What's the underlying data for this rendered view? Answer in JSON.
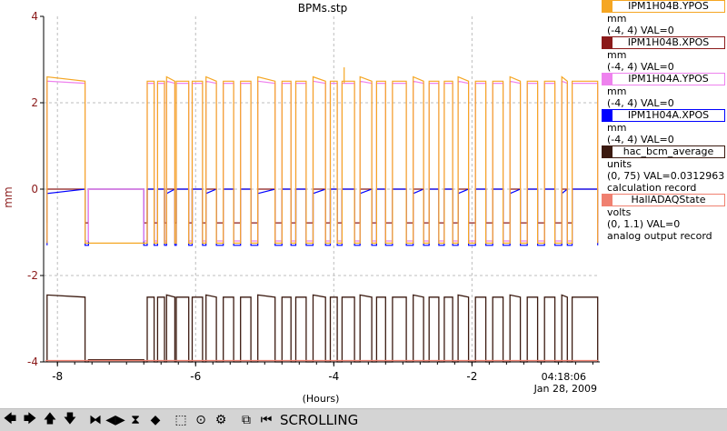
{
  "chart_data": {
    "type": "line",
    "title": "BPMs.stp",
    "xlabel": "(Hours)",
    "ylabel": "mm",
    "xlim": [
      -8.2,
      -0.15
    ],
    "ylim": [
      -4,
      4
    ],
    "x_ticks": [
      "-8",
      "-6",
      "-4",
      "-2"
    ],
    "y_ticks": [
      "4",
      "2",
      "0",
      "-2",
      "-4"
    ],
    "time_label": "04:18:06",
    "date_label": "Jan 28, 2009",
    "grid": true,
    "series": [
      {
        "name": "IPM1H04B.YPOS",
        "color": "#f5a623",
        "values_desc": "toggles between ~2.45 and ~-1.25"
      },
      {
        "name": "IPM1H04B.XPOS",
        "color": "#8b1a1a",
        "values_desc": "toggles between ~-0.8 and ~0.0"
      },
      {
        "name": "IPM1H04A.YPOS",
        "color": "#ee82ee",
        "values_desc": "toggles between ~2.45 and ~-1.25"
      },
      {
        "name": "IPM1H04A.XPOS",
        "color": "#0000ff",
        "values_desc": "toggles between ~-1.3 and ~0.0"
      },
      {
        "name": "hac_bcm_average",
        "color": "#3b1a10",
        "values_desc": "toggles between ~-2.5 and ~-4"
      },
      {
        "name": "HallADAQState",
        "color": "#f08070",
        "values_desc": "near -4"
      }
    ],
    "high_segments": [
      [
        -8.15,
        -7.6
      ],
      [
        -6.7,
        -6.6
      ],
      [
        -6.55,
        -6.45
      ],
      [
        -6.42,
        -6.3
      ],
      [
        -6.28,
        -6.1
      ],
      [
        -6.05,
        -5.9
      ],
      [
        -5.85,
        -5.7
      ],
      [
        -5.6,
        -5.45
      ],
      [
        -5.35,
        -5.2
      ],
      [
        -5.1,
        -4.85
      ],
      [
        -4.75,
        -4.62
      ],
      [
        -4.55,
        -4.4
      ],
      [
        -4.3,
        -4.12
      ],
      [
        -4.05,
        -3.95
      ],
      [
        -3.88,
        -3.7
      ],
      [
        -3.62,
        -3.45
      ],
      [
        -3.38,
        -3.25
      ],
      [
        -3.15,
        -2.95
      ],
      [
        -2.85,
        -2.7
      ],
      [
        -2.62,
        -2.48
      ],
      [
        -2.4,
        -2.28
      ],
      [
        -2.2,
        -2.05
      ],
      [
        -1.95,
        -1.8
      ],
      [
        -1.7,
        -1.55
      ],
      [
        -1.45,
        -1.3
      ],
      [
        -1.2,
        -1.05
      ],
      [
        -0.95,
        -0.8
      ],
      [
        -0.7,
        -0.62
      ],
      [
        -0.55,
        -0.18
      ]
    ],
    "flat_interval": [
      -7.55,
      -6.75
    ]
  },
  "legend": [
    {
      "name": "IPM1H04B.YPOS",
      "color": "#f5a623",
      "lines": [
        "mm",
        "(-4, 4) VAL=0"
      ]
    },
    {
      "name": "IPM1H04B.XPOS",
      "color": "#8b1a1a",
      "lines": [
        "mm",
        "(-4, 4) VAL=0"
      ]
    },
    {
      "name": "IPM1H04A.YPOS",
      "color": "#ee82ee",
      "lines": [
        "mm",
        "(-4, 4) VAL=0"
      ]
    },
    {
      "name": "IPM1H04A.XPOS",
      "color": "#0000ff",
      "lines": [
        "mm",
        "(-4, 4) VAL=0"
      ]
    },
    {
      "name": "hac_bcm_average",
      "color": "#3b1a10",
      "lines": [
        "units",
        "(0, 75) VAL=0.0312963",
        "calculation record"
      ]
    },
    {
      "name": "HallADAQState",
      "color": "#f08070",
      "lines": [
        "volts",
        "(0, 1.1) VAL=0",
        "analog output record"
      ]
    }
  ],
  "toolbar": {
    "status": "SCROLLING",
    "buttons": [
      {
        "name": "scroll-left-button",
        "icon": "arrow-left-icon",
        "glyph": "🡄"
      },
      {
        "name": "scroll-right-button",
        "icon": "arrow-right-icon",
        "glyph": "🡆"
      },
      {
        "name": "scroll-up-button",
        "icon": "arrow-up-icon",
        "glyph": "🡅"
      },
      {
        "name": "scroll-down-button",
        "icon": "arrow-down-icon",
        "glyph": "🡇"
      },
      {
        "name": "zoom-in-x-button",
        "icon": "zoom-in-x-icon",
        "glyph": "⧓"
      },
      {
        "name": "zoom-out-x-button",
        "icon": "zoom-out-x-icon",
        "glyph": "◀▶"
      },
      {
        "name": "zoom-in-y-button",
        "icon": "zoom-in-y-icon",
        "glyph": "⧗"
      },
      {
        "name": "zoom-out-y-button",
        "icon": "zoom-out-y-icon",
        "glyph": "◆"
      },
      {
        "name": "zoom-box-button",
        "icon": "zoom-box-icon",
        "glyph": "⬚"
      },
      {
        "name": "autoscale-button",
        "icon": "autoscale-icon",
        "glyph": "⊙"
      },
      {
        "name": "config-button",
        "icon": "config-icon",
        "glyph": "⚙"
      },
      {
        "name": "scroll-mode-button",
        "icon": "scroll-mode-icon",
        "glyph": "⧉"
      },
      {
        "name": "back-button",
        "icon": "back-icon",
        "glyph": "⏮"
      }
    ]
  }
}
